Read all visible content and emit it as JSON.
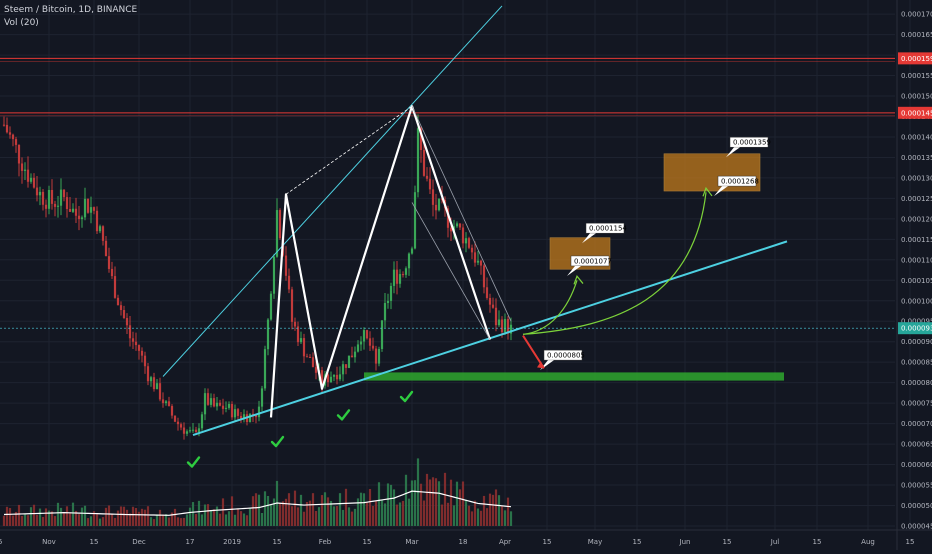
{
  "header": {
    "symbol_line": "Steem / Bitcoin, 1D, BINANCE",
    "volume_line": "Vol (20)"
  },
  "colors": {
    "background": "#131722",
    "grid": "#1e2330",
    "up": "#26a69a",
    "down": "#ef5350",
    "candle_up": "#3aa757",
    "candle_down": "#c23b3b",
    "trend_cyan": "#4dd0e1",
    "support_green": "#2e9e2e",
    "target_box": "#c17a1c",
    "resistance_red": "#e53935",
    "pattern_white": "#ffffff",
    "projection_green": "#7cd23a",
    "check_green": "#2ecc40"
  },
  "chart_data": {
    "type": "candlestick",
    "title": "Steem / Bitcoin, 1D, BINANCE",
    "indicator": "Vol (20)",
    "y_axis": {
      "ticks": [
        "0.0001700",
        "0.0001650",
        "0.0001600",
        "0.0001550",
        "0.0001500",
        "0.0001450",
        "0.0001400",
        "0.0001350",
        "0.0001300",
        "0.0001250",
        "0.0001200",
        "0.0001150",
        "0.0001100",
        "0.0001050",
        "0.0001000",
        "0.0000950",
        "0.0000900",
        "0.0000850",
        "0.0000800",
        "0.0000750",
        "0.0000700",
        "0.0000650",
        "0.0000600",
        "0.0000550",
        "0.0000500",
        "0.0000450"
      ],
      "range": [
        4.45e-05,
        0.0001715
      ]
    },
    "x_axis": {
      "ticks": [
        "15",
        "Nov",
        "15",
        "Dec",
        "17",
        "2019",
        "15",
        "Feb",
        "15",
        "Mar",
        "18",
        "Apr",
        "15",
        "May",
        "15",
        "Jun",
        "15",
        "Jul",
        "15",
        "Aug",
        "15"
      ],
      "tick_days": [
        -2,
        15,
        30,
        45,
        62,
        76,
        91,
        107,
        121,
        136,
        153,
        167,
        181,
        197,
        211,
        227,
        241,
        257,
        271,
        288,
        302
      ]
    },
    "price_path": [
      [
        0,
        0.000143
      ],
      [
        4,
        0.000137
      ],
      [
        8,
        0.000131
      ],
      [
        12,
        0.000126
      ],
      [
        16,
        0.000124
      ],
      [
        20,
        0.000125
      ],
      [
        24,
        0.000121
      ],
      [
        27,
        0.000124
      ],
      [
        30,
        0.000122
      ],
      [
        33,
        0.000114
      ],
      [
        36,
        0.000105
      ],
      [
        39,
        9.8e-05
      ],
      [
        42,
        9.1e-05
      ],
      [
        45,
        8.8e-05
      ],
      [
        48,
        8.2e-05
      ],
      [
        52,
        7.7e-05
      ],
      [
        55,
        7.3e-05
      ],
      [
        58,
        7e-05
      ],
      [
        61,
        6.8e-05
      ],
      [
        64,
        6.7e-05
      ],
      [
        67,
        7.6e-05
      ],
      [
        70,
        7.4e-05
      ],
      [
        74,
        7.4e-05
      ],
      [
        78,
        7.2e-05
      ],
      [
        82,
        7.2e-05
      ],
      [
        85,
        7.3e-05
      ],
      [
        88,
        9.5e-05
      ],
      [
        91,
        0.000122
      ],
      [
        93,
        0.000113
      ],
      [
        96,
        9.5e-05
      ],
      [
        100,
        8.8e-05
      ],
      [
        103,
        8.4e-05
      ],
      [
        106,
        8e-05
      ],
      [
        109,
        8.2e-05
      ],
      [
        112,
        8.3e-05
      ],
      [
        116,
        8.7e-05
      ],
      [
        119,
        9.2e-05
      ],
      [
        122,
        8.9e-05
      ],
      [
        124,
        8.4e-05
      ],
      [
        127,
        9.8e-05
      ],
      [
        130,
        0.000106
      ],
      [
        133,
        0.000107
      ],
      [
        136,
        0.000115
      ],
      [
        138,
        0.00014
      ],
      [
        140,
        0.000132
      ],
      [
        143,
        0.000123
      ],
      [
        146,
        0.000122
      ],
      [
        149,
        0.000119
      ],
      [
        152,
        0.000117
      ],
      [
        155,
        0.000114
      ],
      [
        158,
        0.000109
      ],
      [
        161,
        0.000101
      ],
      [
        164,
        9.5e-05
      ],
      [
        167,
        9.4e-05
      ],
      [
        169,
        9.3e-05
      ]
    ],
    "volume_pattern": [
      [
        0,
        4.78e-05
      ],
      [
        20,
        4.825e-05
      ],
      [
        40,
        4.78e-05
      ],
      [
        55,
        4.76e-05
      ],
      [
        62,
        4.83e-05
      ],
      [
        70,
        4.88e-05
      ],
      [
        85,
        4.95e-05
      ],
      [
        91,
        5.06e-05
      ],
      [
        100,
        5.01e-05
      ],
      [
        110,
        5.04e-05
      ],
      [
        120,
        5.07e-05
      ],
      [
        130,
        5.18e-05
      ],
      [
        136,
        5.35e-05
      ],
      [
        145,
        5.3e-05
      ],
      [
        158,
        5.05e-05
      ],
      [
        169,
        4.97e-05
      ]
    ],
    "current_price": "0.0000933",
    "resistance_levels": [
      "0.0001592",
      "0.0001459"
    ],
    "targets": [
      {
        "low": "0.0001077",
        "high": "0.0001154"
      },
      {
        "low": "0.0001268",
        "high": "0.0001359"
      }
    ],
    "downside_target": "0.0000805",
    "support_zone": {
      "from_day": 120,
      "to_day": 260,
      "low": 8.05e-05,
      "high": 8.25e-05
    },
    "trendline": {
      "p1": [
        63,
        6.72e-05
      ],
      "p2": [
        261,
        0.0001145
      ]
    },
    "channel_top": {
      "p1": [
        53,
        8.15e-05
      ],
      "p2": [
        166,
        0.000172
      ]
    },
    "pattern_points": [
      [
        89,
        7.15e-05
      ],
      [
        94,
        0.000126
      ],
      [
        106,
        7.85e-05
      ],
      [
        136,
        0.0001475
      ],
      [
        162,
        9.05e-05
      ]
    ],
    "pattern_dashed": [
      [
        94,
        0.000126
      ],
      [
        136,
        0.0001475
      ]
    ],
    "wedge_lines": [
      [
        [
          136,
          0.0001475
        ],
        [
          169,
          9.5e-05
        ]
      ],
      [
        [
          136,
          0.000124
        ],
        [
          162,
          9.05e-05
        ]
      ]
    ],
    "check_marks": [
      63,
      91,
      113,
      134
    ],
    "legend": []
  }
}
